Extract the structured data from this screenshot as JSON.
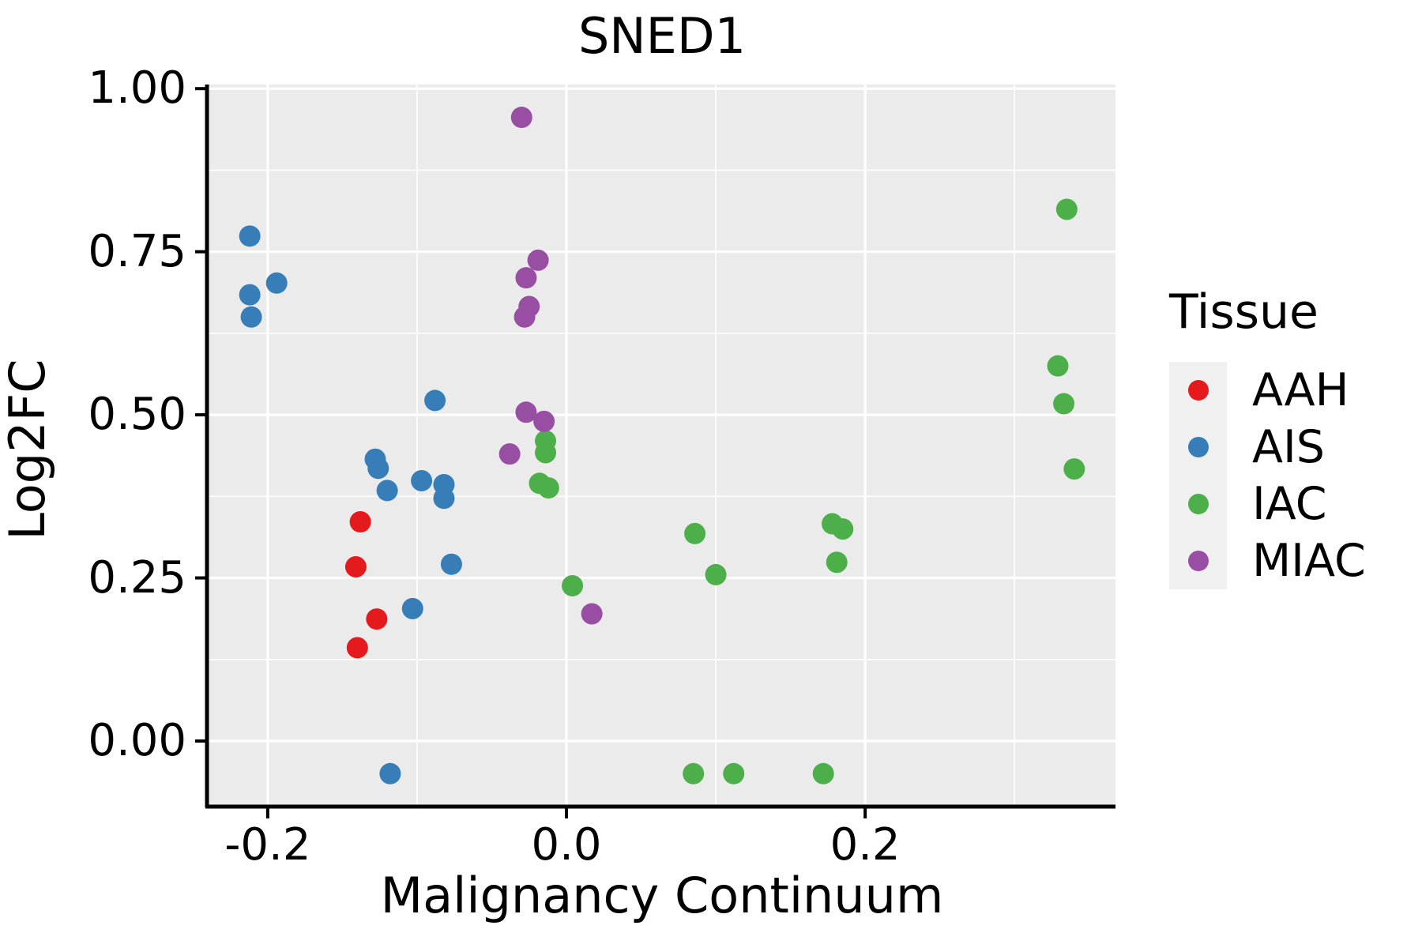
{
  "title": "SNED1",
  "axes": {
    "x": {
      "label": "Malignancy Continuum",
      "range": [
        -0.2396,
        0.3676
      ],
      "major_ticks": [
        -0.2,
        0.0,
        0.2
      ],
      "tick_labels": [
        "-0.2",
        "0.0",
        "0.2"
      ],
      "minor_gridlines": [
        -0.1,
        0.1,
        0.3
      ]
    },
    "y": {
      "label": "Log2FC",
      "range": [
        -0.0993,
        1.0063
      ],
      "major_ticks": [
        0.0,
        0.25,
        0.5,
        0.75,
        1.0
      ],
      "tick_labels": [
        "0.00",
        "0.25",
        "0.50",
        "0.75",
        "1.00"
      ],
      "minor_gridlines": [
        0.125,
        0.375,
        0.625,
        0.875
      ]
    }
  },
  "legend": {
    "title": "Tissue",
    "entries": [
      {
        "label": "AAH",
        "color": "#E41A1C"
      },
      {
        "label": "AIS",
        "color": "#377EB8"
      },
      {
        "label": "IAC",
        "color": "#4DAF4A"
      },
      {
        "label": "MIAC",
        "color": "#984EA3"
      }
    ]
  },
  "style_colors": {
    "panel_background": "#EBEBEB",
    "gridline": "#FFFFFF",
    "axis_line": "#000000",
    "text": "#000000",
    "legend_key_background": "#F0F0F0"
  },
  "chart_data": {
    "type": "scatter",
    "title": "SNED1",
    "xlabel": "Malignancy Continuum",
    "ylabel": "Log2FC",
    "xlim": [
      -0.2396,
      0.3676
    ],
    "ylim": [
      -0.0993,
      1.0063
    ],
    "grid": true,
    "legend_position": "right",
    "series": [
      {
        "name": "AAH",
        "color": "#E41A1C",
        "points": [
          [
            -0.138,
            0.336
          ],
          [
            -0.141,
            0.267
          ],
          [
            -0.127,
            0.187
          ],
          [
            -0.14,
            0.143
          ]
        ]
      },
      {
        "name": "AIS",
        "color": "#377EB8",
        "points": [
          [
            -0.212,
            0.774
          ],
          [
            -0.194,
            0.702
          ],
          [
            -0.212,
            0.684
          ],
          [
            -0.211,
            0.65
          ],
          [
            -0.088,
            0.522
          ],
          [
            -0.128,
            0.432
          ],
          [
            -0.126,
            0.418
          ],
          [
            -0.12,
            0.384
          ],
          [
            -0.097,
            0.399
          ],
          [
            -0.082,
            0.393
          ],
          [
            -0.082,
            0.372
          ],
          [
            -0.077,
            0.271
          ],
          [
            -0.103,
            0.203
          ],
          [
            -0.118,
            -0.05
          ]
        ]
      },
      {
        "name": "IAC",
        "color": "#4DAF4A",
        "points": [
          [
            0.335,
            0.815
          ],
          [
            0.329,
            0.575
          ],
          [
            0.333,
            0.517
          ],
          [
            0.34,
            0.417
          ],
          [
            -0.014,
            0.46
          ],
          [
            -0.014,
            0.442
          ],
          [
            -0.018,
            0.395
          ],
          [
            -0.012,
            0.388
          ],
          [
            0.004,
            0.238
          ],
          [
            0.086,
            0.318
          ],
          [
            0.1,
            0.255
          ],
          [
            0.178,
            0.333
          ],
          [
            0.185,
            0.325
          ],
          [
            0.181,
            0.274
          ],
          [
            0.085,
            -0.05
          ],
          [
            0.112,
            -0.05
          ],
          [
            0.172,
            -0.05
          ]
        ]
      },
      {
        "name": "MIAC",
        "color": "#984EA3",
        "points": [
          [
            -0.03,
            0.956
          ],
          [
            -0.019,
            0.737
          ],
          [
            -0.027,
            0.71
          ],
          [
            -0.025,
            0.666
          ],
          [
            -0.028,
            0.65
          ],
          [
            -0.027,
            0.504
          ],
          [
            -0.015,
            0.49
          ],
          [
            -0.038,
            0.44
          ],
          [
            0.017,
            0.195
          ]
        ]
      }
    ]
  }
}
